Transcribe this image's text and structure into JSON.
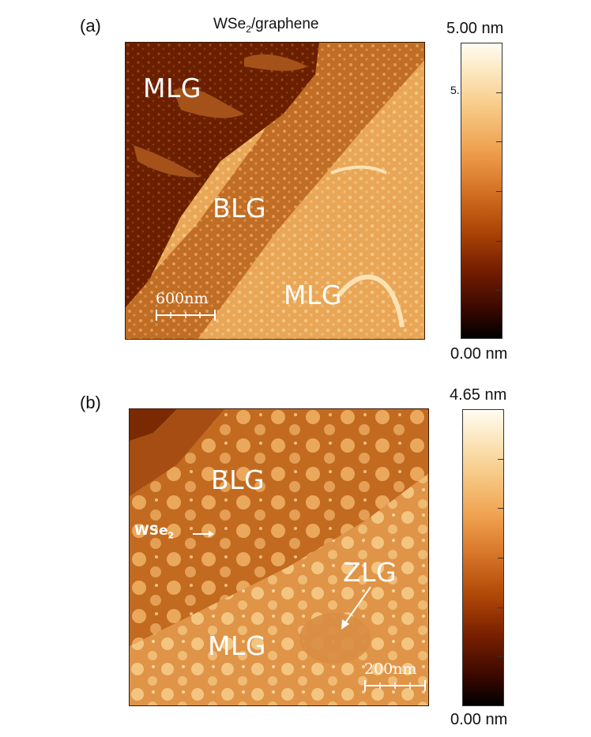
{
  "panel_a": {
    "label": "(a)",
    "title_main": "WSe",
    "title_sub": "2",
    "title_rest": "/graphene",
    "regions": {
      "mlg_top": "MLG",
      "blg": "BLG",
      "mlg_bottom": "MLG"
    },
    "scalebar": "600nm",
    "colorbar": {
      "max": "5.00 nm",
      "min": "0.00 nm",
      "tick_mid": "5."
    }
  },
  "panel_b": {
    "label": "(b)",
    "regions": {
      "blg": "BLG",
      "mlg": "MLG",
      "zlg": "ZLG"
    },
    "wse2_main": "WSe",
    "wse2_sub": "2",
    "scalebar": "200nm",
    "colorbar": {
      "max": "4.65 nm",
      "min": "0.00 nm"
    }
  },
  "colors": {
    "dark_domain": "#6a2100",
    "mid_domain": "#b8601c",
    "light_domain": "#e39a48",
    "islands": "#f3c581"
  }
}
